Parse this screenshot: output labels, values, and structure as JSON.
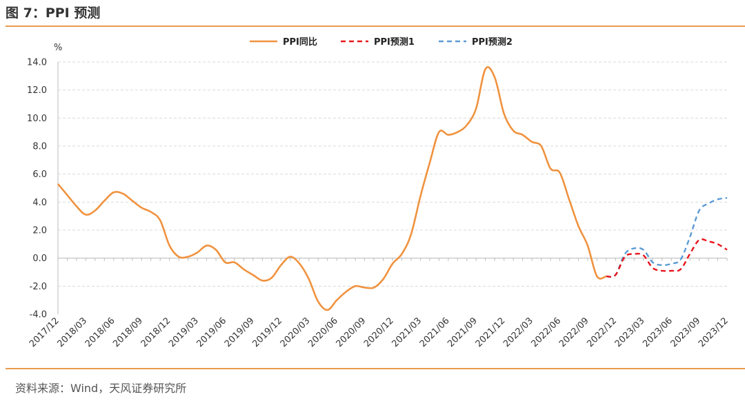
{
  "figure_title": "图 7：PPI 预测",
  "source_note": "资料来源：Wind，天风证券研究所",
  "colors": {
    "ppi": "#f0923e",
    "forecast1": "#e8141b",
    "forecast2": "#5b9bd5",
    "rule": "#ea9a4e"
  },
  "chart_data": {
    "type": "line",
    "title": "",
    "ylabel": "%",
    "ylim": [
      -4.0,
      14.0
    ],
    "yticks": [
      -4.0,
      -2.0,
      0.0,
      2.0,
      4.0,
      6.0,
      8.0,
      10.0,
      12.0,
      14.0
    ],
    "grid": true,
    "legend_position": "top-center",
    "x_tick_labels": [
      "2017/12",
      "2018/03",
      "2018/06",
      "2018/09",
      "2018/12",
      "2019/03",
      "2019/06",
      "2019/09",
      "2019/12",
      "2020/03",
      "2020/06",
      "2020/09",
      "2020/12",
      "2021/03",
      "2021/06",
      "2021/09",
      "2021/12",
      "2022/03",
      "2022/06",
      "2022/09",
      "2022/12",
      "2023/03",
      "2023/06",
      "2023/09",
      "2023/12"
    ],
    "series": [
      {
        "name": "PPI同比",
        "style": "solid",
        "color": "#f0923e",
        "x": [
          "2017/12",
          "2018/01",
          "2018/02",
          "2018/03",
          "2018/04",
          "2018/05",
          "2018/06",
          "2018/07",
          "2018/08",
          "2018/09",
          "2018/10",
          "2018/11",
          "2018/12",
          "2019/01",
          "2019/02",
          "2019/03",
          "2019/04",
          "2019/05",
          "2019/06",
          "2019/07",
          "2019/08",
          "2019/09",
          "2019/10",
          "2019/11",
          "2019/12",
          "2020/01",
          "2020/02",
          "2020/03",
          "2020/04",
          "2020/05",
          "2020/06",
          "2020/07",
          "2020/08",
          "2020/09",
          "2020/10",
          "2020/11",
          "2020/12",
          "2021/01",
          "2021/02",
          "2021/03",
          "2021/04",
          "2021/05",
          "2021/06",
          "2021/07",
          "2021/08",
          "2021/09",
          "2021/10",
          "2021/11",
          "2021/12",
          "2022/01",
          "2022/02",
          "2022/03",
          "2022/04",
          "2022/05",
          "2022/06",
          "2022/07",
          "2022/08",
          "2022/09",
          "2022/10",
          "2022/11"
        ],
        "values": [
          5.3,
          4.5,
          3.7,
          3.1,
          3.4,
          4.1,
          4.7,
          4.6,
          4.1,
          3.6,
          3.3,
          2.7,
          0.9,
          0.1,
          0.1,
          0.4,
          0.9,
          0.6,
          -0.3,
          -0.3,
          -0.8,
          -1.2,
          -1.6,
          -1.4,
          -0.5,
          0.1,
          -0.4,
          -1.5,
          -3.1,
          -3.7,
          -3.0,
          -2.4,
          -2.0,
          -2.1,
          -2.1,
          -1.5,
          -0.4,
          0.3,
          1.7,
          4.4,
          6.8,
          9.0,
          8.8,
          9.0,
          9.5,
          10.7,
          13.5,
          12.9,
          10.3,
          9.1,
          8.8,
          8.3,
          8.0,
          6.4,
          6.1,
          4.2,
          2.3,
          0.9,
          -1.3,
          -1.3
        ]
      },
      {
        "name": "PPI预测1",
        "style": "dashed",
        "color": "#e8141b",
        "x": [
          "2022/11",
          "2022/12",
          "2023/01",
          "2023/02",
          "2023/03",
          "2023/04",
          "2023/05",
          "2023/06",
          "2023/07",
          "2023/08",
          "2023/09",
          "2023/10",
          "2023/11",
          "2023/12"
        ],
        "values": [
          -1.3,
          -1.2,
          0.1,
          0.3,
          0.2,
          -0.7,
          -0.9,
          -0.9,
          -0.8,
          0.3,
          1.3,
          1.2,
          1.0,
          0.6
        ]
      },
      {
        "name": "PPI预测2",
        "style": "dashed",
        "color": "#5b9bd5",
        "x": [
          "2022/11",
          "2022/12",
          "2023/01",
          "2023/02",
          "2023/03",
          "2023/04",
          "2023/05",
          "2023/06",
          "2023/07",
          "2023/08",
          "2023/09",
          "2023/10",
          "2023/11",
          "2023/12"
        ],
        "values": [
          -1.3,
          -1.2,
          0.3,
          0.7,
          0.6,
          -0.3,
          -0.5,
          -0.4,
          -0.1,
          1.5,
          3.4,
          3.9,
          4.2,
          4.3
        ]
      }
    ]
  }
}
